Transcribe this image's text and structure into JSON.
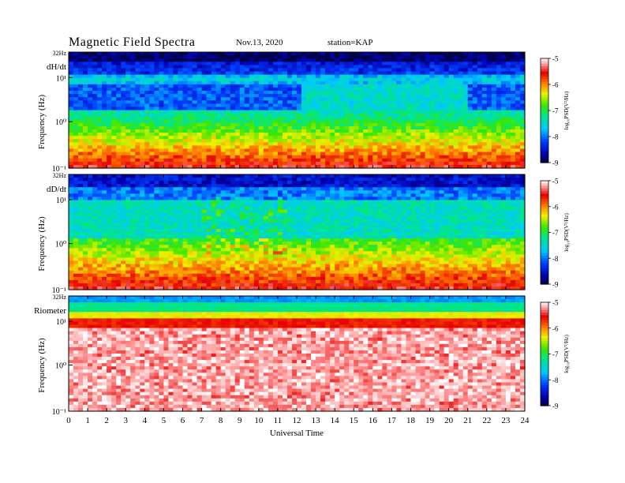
{
  "header": {
    "title": "Magnetic  Field  Spectra",
    "date": "Nov.13, 2020",
    "station": "station=KAP"
  },
  "chart_data": [
    {
      "type": "heatmap",
      "panel_label": "dH/dt",
      "ylabel": "Frequency  (Hz)",
      "y_scale": "log",
      "ylim_label": "32Hz",
      "y_ticks": [
        "10¹",
        "10⁰",
        "10⁻¹"
      ],
      "x_range": [
        0,
        24
      ],
      "colorbar_label": "log₁₀PSD(V²/Hz)",
      "colorbar_ticks": [
        "-5",
        "-6",
        "-7",
        "-8",
        "-9"
      ],
      "colorbar_range": [
        -9,
        -5
      ]
    },
    {
      "type": "heatmap",
      "panel_label": "dD/dt",
      "ylabel": "Frequency  (Hz)",
      "y_scale": "log",
      "ylim_label": "32Hz",
      "y_ticks": [
        "10¹",
        "10⁰",
        "10⁻¹"
      ],
      "x_range": [
        0,
        24
      ],
      "colorbar_label": "log₁₀PSD(V²/Hz)",
      "colorbar_ticks": [
        "-5",
        "-6",
        "-7",
        "-8",
        "-9"
      ],
      "colorbar_range": [
        -9,
        -5
      ]
    },
    {
      "type": "heatmap",
      "panel_label": "Riometer",
      "ylabel": "Frequency  (Hz)",
      "y_scale": "log",
      "ylim_label": "32Hz",
      "y_ticks": [
        "10¹",
        "10⁰",
        "10⁻¹"
      ],
      "x_range": [
        0,
        24
      ],
      "x_ticks": [
        "0",
        "1",
        "2",
        "3",
        "4",
        "5",
        "6",
        "7",
        "8",
        "9",
        "10",
        "11",
        "12",
        "13",
        "14",
        "15",
        "16",
        "17",
        "18",
        "19",
        "20",
        "21",
        "22",
        "23",
        "24"
      ],
      "xlabel": "Universal  Time",
      "colorbar_label": "log₁₀PSD(V²/Hz)",
      "colorbar_ticks": [
        "-5",
        "-6",
        "-7",
        "-8",
        "-9"
      ],
      "colorbar_range": [
        -9,
        -5
      ]
    }
  ]
}
